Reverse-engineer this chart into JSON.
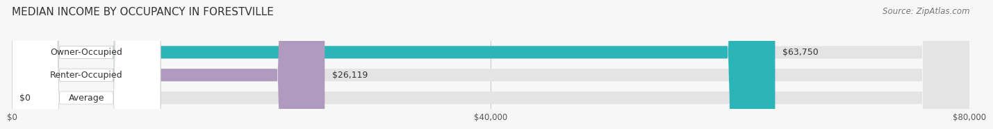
{
  "title": "MEDIAN INCOME BY OCCUPANCY IN FORESTVILLE",
  "source": "Source: ZipAtlas.com",
  "categories": [
    "Owner-Occupied",
    "Renter-Occupied",
    "Average"
  ],
  "values": [
    63750,
    26119,
    0
  ],
  "bar_colors": [
    "#2BB5B8",
    "#B09AC0",
    "#F5C89A"
  ],
  "bar_labels": [
    "$63,750",
    "$26,119",
    "$0"
  ],
  "xlim": [
    0,
    80000
  ],
  "xticks": [
    0,
    40000,
    80000
  ],
  "xtick_labels": [
    "$0",
    "$40,000",
    "$80,000"
  ],
  "background_color": "#f7f7f7",
  "bar_bg_color": "#e4e4e4",
  "title_fontsize": 11,
  "label_fontsize": 9,
  "source_fontsize": 8.5
}
